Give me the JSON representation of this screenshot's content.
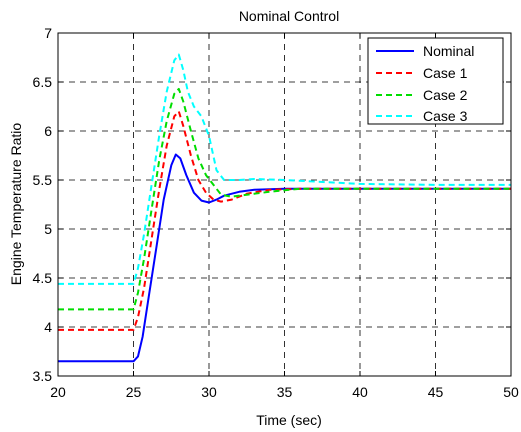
{
  "chart_data": {
    "type": "line",
    "title": "Nominal Control",
    "xlabel": "Time (sec)",
    "ylabel": "Engine Temperature Ratio",
    "xlim": [
      20,
      50
    ],
    "ylim": [
      3.5,
      7
    ],
    "xticks": [
      20,
      25,
      30,
      35,
      40,
      45,
      50
    ],
    "yticks": [
      3.5,
      4,
      4.5,
      5,
      5.5,
      6,
      6.5,
      7
    ],
    "xtick_labels": [
      "20",
      "25",
      "30",
      "35",
      "40",
      "45",
      "50"
    ],
    "ytick_labels": [
      "3.5",
      "4",
      "4.5",
      "5",
      "5.5",
      "6",
      "6.5",
      "7"
    ],
    "grid": true,
    "legend_position": "top-right",
    "series": [
      {
        "name": "Nominal",
        "color": "#0000ff",
        "dash": "solid",
        "points": [
          [
            20,
            3.65
          ],
          [
            25,
            3.65
          ],
          [
            25.3,
            3.7
          ],
          [
            25.6,
            3.9
          ],
          [
            26,
            4.3
          ],
          [
            26.5,
            4.8
          ],
          [
            27,
            5.3
          ],
          [
            27.5,
            5.65
          ],
          [
            27.8,
            5.76
          ],
          [
            28.1,
            5.72
          ],
          [
            28.5,
            5.55
          ],
          [
            29,
            5.37
          ],
          [
            29.5,
            5.29
          ],
          [
            30,
            5.27
          ],
          [
            30.5,
            5.3
          ],
          [
            31,
            5.34
          ],
          [
            32,
            5.38
          ],
          [
            33,
            5.4
          ],
          [
            35,
            5.41
          ],
          [
            40,
            5.41
          ],
          [
            50,
            5.41
          ]
        ]
      },
      {
        "name": "Case 1",
        "color": "#ff0000",
        "dash": "dashed",
        "points": [
          [
            20,
            3.97
          ],
          [
            25,
            3.97
          ],
          [
            25.3,
            4.1
          ],
          [
            25.7,
            4.4
          ],
          [
            26.2,
            4.9
          ],
          [
            26.7,
            5.4
          ],
          [
            27.2,
            5.85
          ],
          [
            27.7,
            6.15
          ],
          [
            28,
            6.2
          ],
          [
            28.3,
            6.05
          ],
          [
            28.8,
            5.75
          ],
          [
            29.3,
            5.5
          ],
          [
            29.8,
            5.37
          ],
          [
            30.3,
            5.3
          ],
          [
            30.8,
            5.28
          ],
          [
            31.5,
            5.3
          ],
          [
            32.5,
            5.36
          ],
          [
            34,
            5.4
          ],
          [
            36,
            5.41
          ],
          [
            50,
            5.41
          ]
        ]
      },
      {
        "name": "Case 2",
        "color": "#00dd00",
        "dash": "dashed",
        "points": [
          [
            20,
            4.18
          ],
          [
            25,
            4.18
          ],
          [
            25.3,
            4.35
          ],
          [
            25.7,
            4.7
          ],
          [
            26.2,
            5.2
          ],
          [
            26.7,
            5.7
          ],
          [
            27.2,
            6.1
          ],
          [
            27.7,
            6.38
          ],
          [
            28,
            6.43
          ],
          [
            28.3,
            6.3
          ],
          [
            28.8,
            6.0
          ],
          [
            29.3,
            5.72
          ],
          [
            29.8,
            5.55
          ],
          [
            30.3,
            5.45
          ],
          [
            30.8,
            5.35
          ],
          [
            31.5,
            5.33
          ],
          [
            32.5,
            5.35
          ],
          [
            34,
            5.38
          ],
          [
            36,
            5.41
          ],
          [
            50,
            5.41
          ]
        ]
      },
      {
        "name": "Case 3",
        "color": "#00ffff",
        "dash": "dashed",
        "points": [
          [
            20,
            4.44
          ],
          [
            25,
            4.44
          ],
          [
            25.3,
            4.6
          ],
          [
            25.7,
            4.95
          ],
          [
            26.2,
            5.45
          ],
          [
            26.7,
            5.95
          ],
          [
            27.2,
            6.4
          ],
          [
            27.7,
            6.72
          ],
          [
            28,
            6.78
          ],
          [
            28.3,
            6.62
          ],
          [
            28.6,
            6.4
          ],
          [
            29,
            6.25
          ],
          [
            29.5,
            6.15
          ],
          [
            30,
            5.95
          ],
          [
            30.5,
            5.6
          ],
          [
            31,
            5.5
          ],
          [
            32,
            5.5
          ],
          [
            33,
            5.51
          ],
          [
            35,
            5.5
          ],
          [
            40,
            5.46
          ],
          [
            45,
            5.45
          ],
          [
            50,
            5.45
          ]
        ]
      }
    ]
  }
}
